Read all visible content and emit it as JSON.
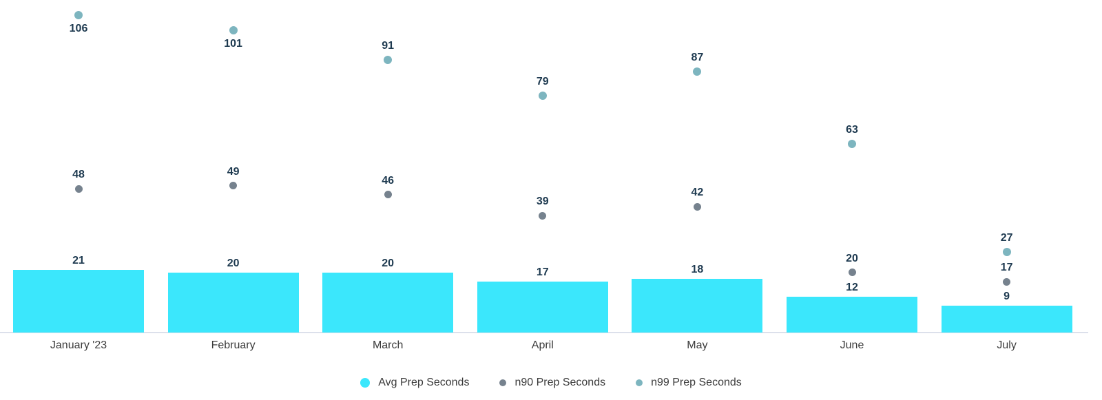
{
  "chart_data": {
    "type": "bar",
    "categories": [
      "January '23",
      "February",
      "March",
      "April",
      "May",
      "June",
      "July"
    ],
    "series": [
      {
        "name": "Avg Prep Seconds",
        "type": "bar",
        "color": "#3BE7FC",
        "values": [
          21,
          20,
          20,
          17,
          18,
          12,
          9
        ]
      },
      {
        "name": "n90 Prep Seconds",
        "type": "scatter",
        "color": "#76828E",
        "values": [
          48,
          49,
          46,
          39,
          42,
          20,
          17
        ]
      },
      {
        "name": "n99 Prep Seconds",
        "type": "scatter",
        "color": "#7DB5BF",
        "values": [
          106,
          101,
          91,
          79,
          87,
          63,
          27
        ]
      }
    ],
    "ylim": [
      0,
      111
    ],
    "grid": false,
    "value_labels": true,
    "legend_position": "bottom",
    "colors": {
      "value_label": "#1E3A50",
      "tick_label": "#3B3B3B",
      "legend_text": "#3B3B3B",
      "axis_line": "#DCE0EB",
      "background": "#FFFFFF"
    }
  }
}
